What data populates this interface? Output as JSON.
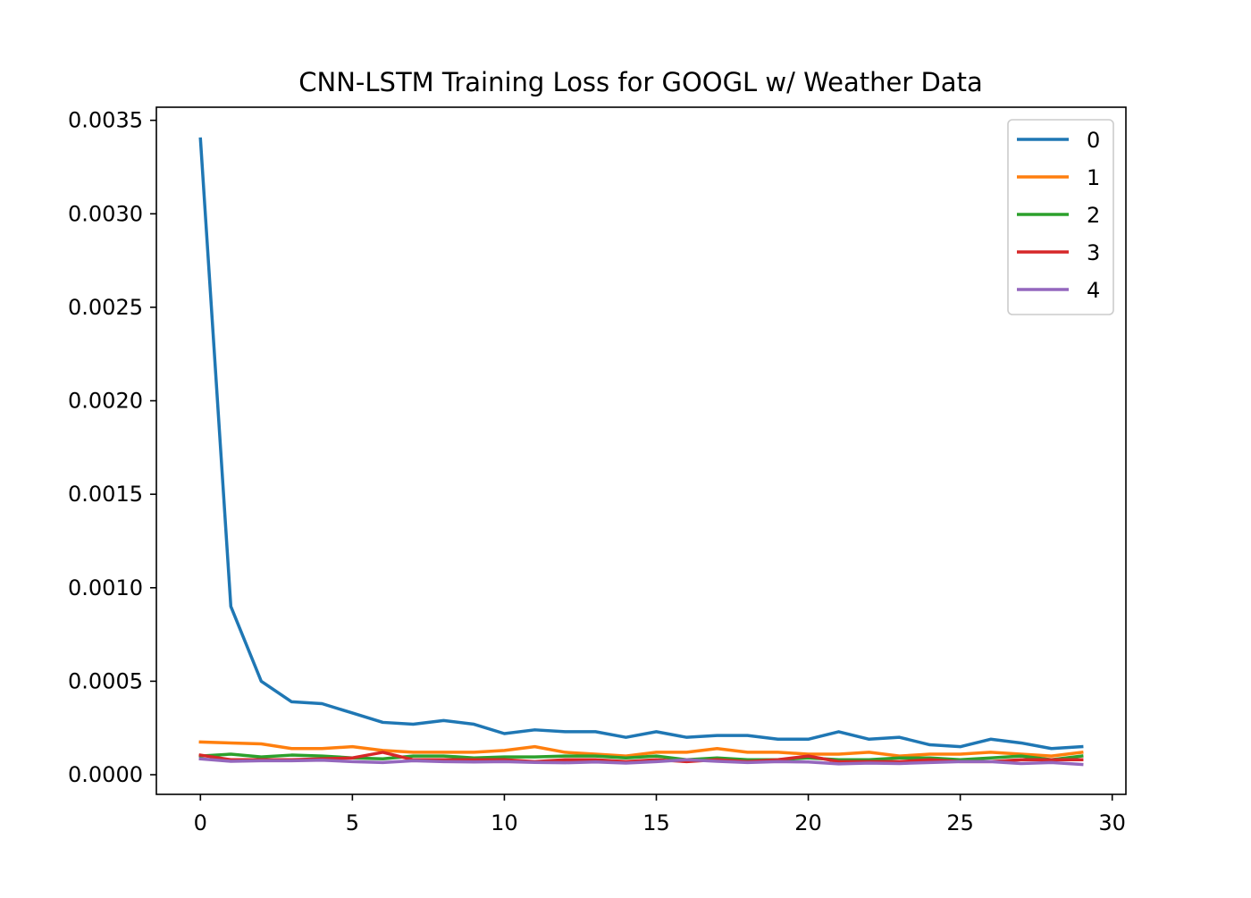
{
  "chart_data": {
    "type": "line",
    "title": "CNN-LSTM Training Loss for GOOGL w/ Weather Data",
    "xlabel": "",
    "ylabel": "",
    "xlim": [
      -1.45,
      30.45
    ],
    "ylim": [
      -0.000105,
      0.00357
    ],
    "xticks": [
      0,
      5,
      10,
      15,
      20,
      25,
      30
    ],
    "xtick_labels": [
      "0",
      "5",
      "10",
      "15",
      "20",
      "25",
      "30"
    ],
    "yticks": [
      0.0,
      0.0005,
      0.001,
      0.0015,
      0.002,
      0.0025,
      0.003,
      0.0035
    ],
    "ytick_labels": [
      "0.0000",
      "0.0005",
      "0.0010",
      "0.0015",
      "0.0020",
      "0.0025",
      "0.0030",
      "0.0035"
    ],
    "grid": false,
    "legend_position": "top-right",
    "x": [
      0,
      1,
      2,
      3,
      4,
      5,
      6,
      7,
      8,
      9,
      10,
      11,
      12,
      13,
      14,
      15,
      16,
      17,
      18,
      19,
      20,
      21,
      22,
      23,
      24,
      25,
      26,
      27,
      28,
      29
    ],
    "series": [
      {
        "name": "0",
        "color": "#1f77b4",
        "values": [
          0.0034,
          0.0009,
          0.0005,
          0.00039,
          0.00038,
          0.00033,
          0.00028,
          0.00027,
          0.00029,
          0.00027,
          0.00022,
          0.00024,
          0.00023,
          0.00023,
          0.0002,
          0.00023,
          0.0002,
          0.00021,
          0.00021,
          0.00019,
          0.00019,
          0.00023,
          0.00019,
          0.0002,
          0.00016,
          0.00015,
          0.00019,
          0.00017,
          0.00014,
          0.00015
        ]
      },
      {
        "name": "1",
        "color": "#ff7f0e",
        "values": [
          0.000175,
          0.00017,
          0.000165,
          0.00014,
          0.00014,
          0.00015,
          0.00013,
          0.00012,
          0.00012,
          0.00012,
          0.00013,
          0.00015,
          0.00012,
          0.00011,
          0.0001,
          0.00012,
          0.00012,
          0.00014,
          0.00012,
          0.00012,
          0.00011,
          0.00011,
          0.00012,
          0.0001,
          0.00011,
          0.00011,
          0.00012,
          0.00011,
          0.0001,
          0.00012
        ]
      },
      {
        "name": "2",
        "color": "#2ca02c",
        "values": [
          0.0001,
          0.00011,
          9.5e-05,
          0.000105,
          0.0001,
          9e-05,
          8.5e-05,
          0.0001,
          0.0001,
          9e-05,
          9.5e-05,
          9.5e-05,
          0.0001,
          0.0001,
          9e-05,
          0.0001,
          8e-05,
          9e-05,
          8e-05,
          8e-05,
          9e-05,
          8e-05,
          8e-05,
          9e-05,
          9e-05,
          8e-05,
          9e-05,
          0.0001,
          8e-05,
          0.0001
        ]
      },
      {
        "name": "3",
        "color": "#d62728",
        "values": [
          0.000105,
          8e-05,
          8e-05,
          8e-05,
          8.5e-05,
          9e-05,
          0.00012,
          8e-05,
          8e-05,
          8e-05,
          8e-05,
          7e-05,
          8e-05,
          8e-05,
          7e-05,
          8e-05,
          7e-05,
          8e-05,
          7e-05,
          8e-05,
          0.0001,
          7e-05,
          7e-05,
          7e-05,
          8e-05,
          7e-05,
          7e-05,
          8e-05,
          8e-05,
          8e-05
        ]
      },
      {
        "name": "4",
        "color": "#9467bd",
        "values": [
          8.5e-05,
          7.2e-05,
          7.5e-05,
          7.5e-05,
          7.8e-05,
          7e-05,
          6.5e-05,
          7.5e-05,
          7e-05,
          6.8e-05,
          7e-05,
          6.6e-05,
          6.4e-05,
          6.8e-05,
          6.2e-05,
          7e-05,
          8e-05,
          7.2e-05,
          6.5e-05,
          7e-05,
          6.8e-05,
          5.8e-05,
          6.2e-05,
          6e-05,
          6.5e-05,
          7e-05,
          7e-05,
          6e-05,
          6.5e-05,
          5.5e-05
        ]
      }
    ]
  }
}
